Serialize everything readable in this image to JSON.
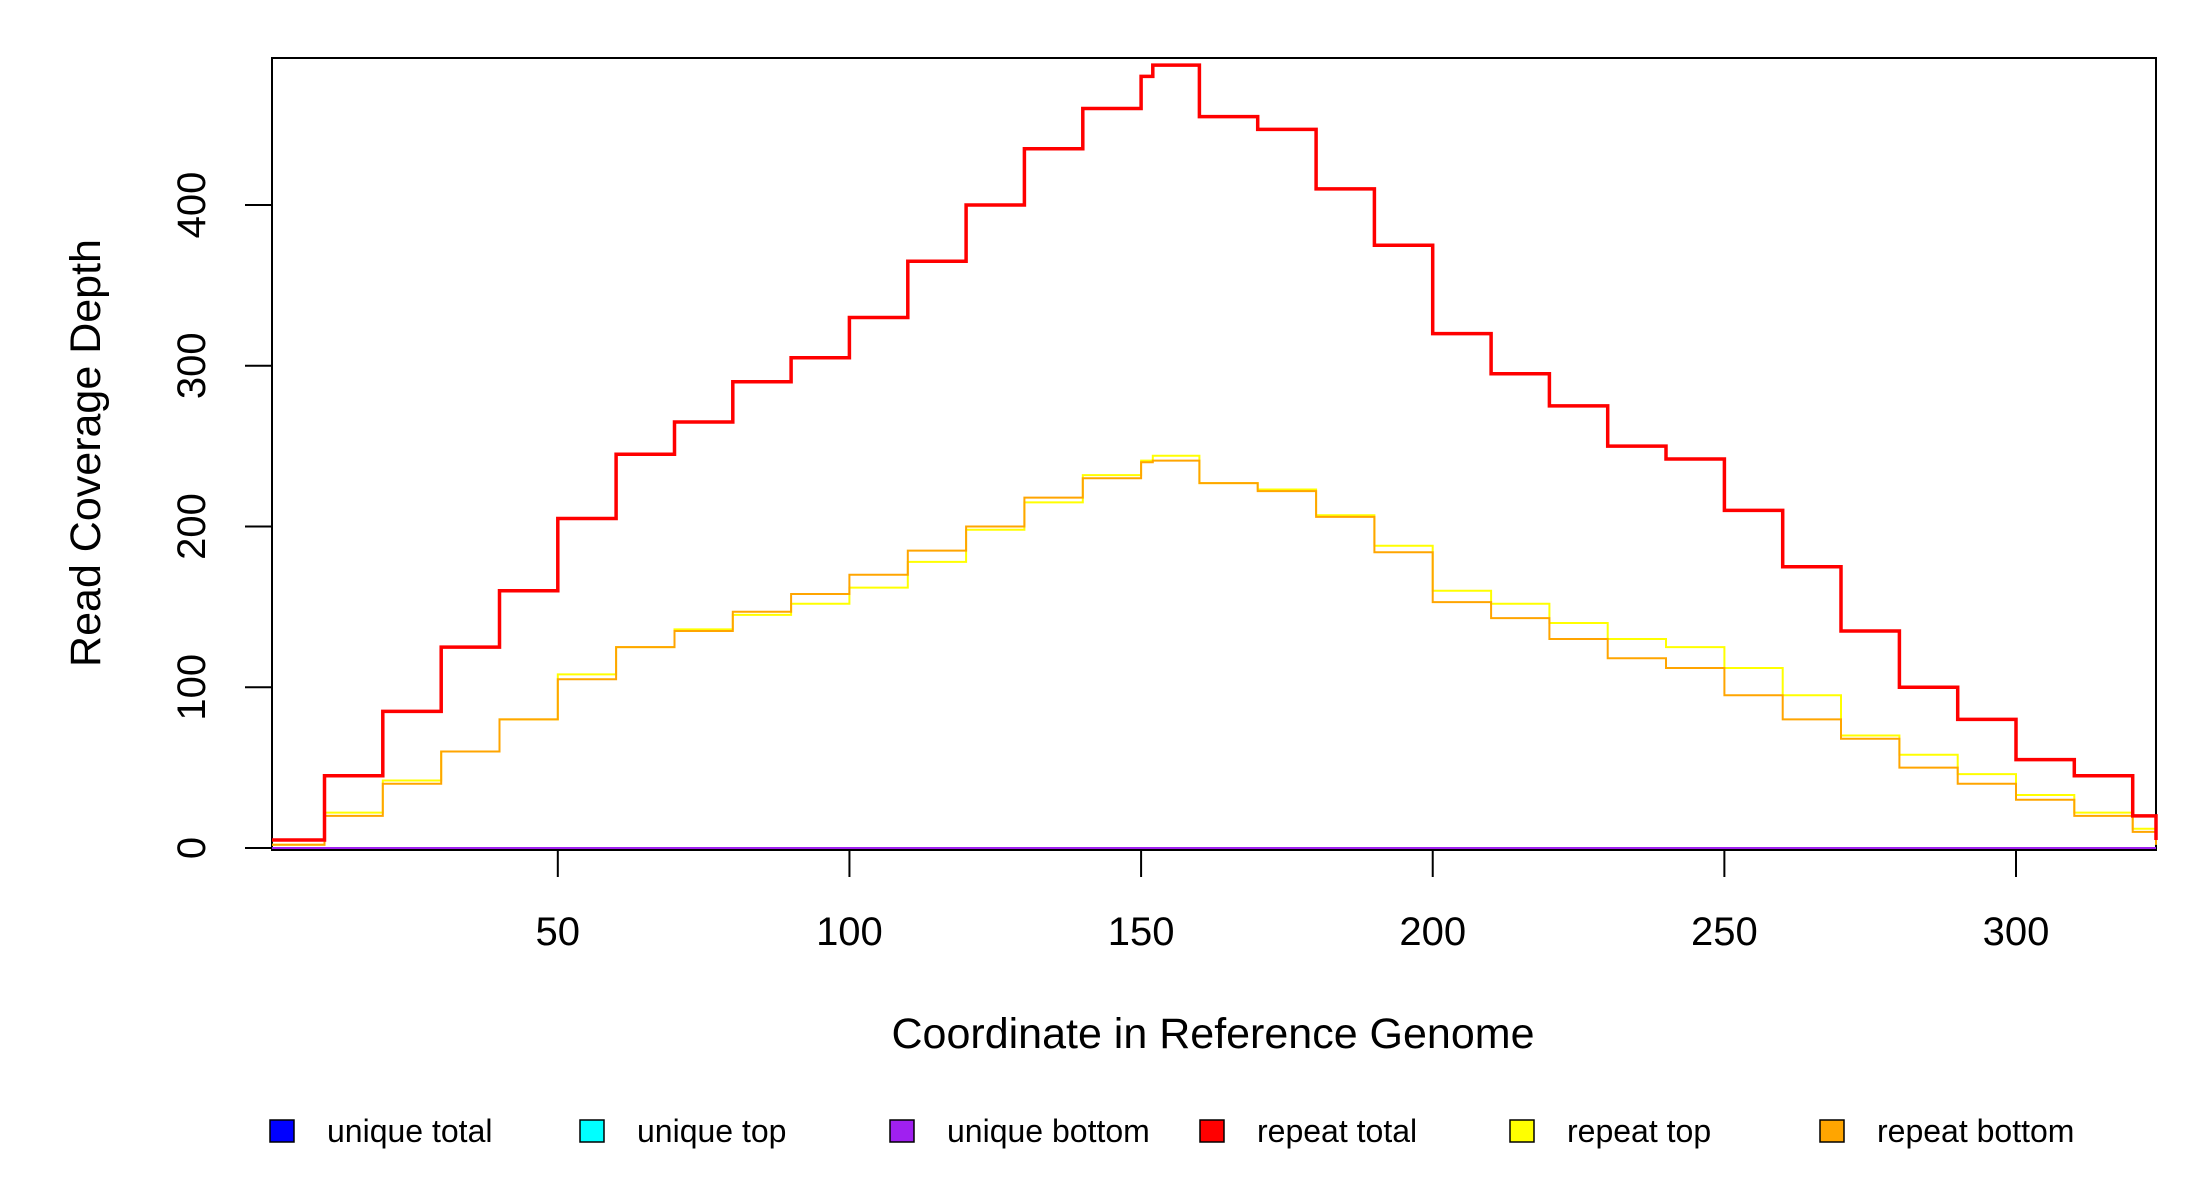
{
  "chart_data": {
    "type": "line",
    "title": "",
    "xlabel": "Coordinate in Reference Genome",
    "ylabel": "Read Coverage Depth",
    "xlim": [
      1,
      324
    ],
    "ylim": [
      0,
      490
    ],
    "x_ticks": [
      50,
      100,
      150,
      200,
      250,
      300
    ],
    "y_ticks": [
      0,
      100,
      200,
      300,
      400
    ],
    "grid": false,
    "legend_position": "bottom",
    "x": [
      1,
      10,
      20,
      30,
      40,
      50,
      60,
      70,
      80,
      90,
      100,
      110,
      120,
      130,
      140,
      150,
      152,
      160,
      170,
      180,
      190,
      200,
      210,
      220,
      230,
      240,
      250,
      260,
      270,
      280,
      290,
      300,
      310,
      320,
      324
    ],
    "series": [
      {
        "name": "unique total",
        "color": "#0000FF",
        "values": [
          0,
          0,
          0,
          0,
          0,
          0,
          0,
          0,
          0,
          0,
          0,
          0,
          0,
          0,
          0,
          0,
          0,
          0,
          0,
          0,
          0,
          0,
          0,
          0,
          0,
          0,
          0,
          0,
          0,
          0,
          0,
          0,
          0,
          0,
          0
        ]
      },
      {
        "name": "unique top",
        "color": "#00FFFF",
        "values": [
          0,
          0,
          0,
          0,
          0,
          0,
          0,
          0,
          0,
          0,
          0,
          0,
          0,
          0,
          0,
          0,
          0,
          0,
          0,
          0,
          0,
          0,
          0,
          0,
          0,
          0,
          0,
          0,
          0,
          0,
          0,
          0,
          0,
          0,
          0
        ]
      },
      {
        "name": "unique bottom",
        "color": "#A020F0",
        "values": [
          0,
          0,
          0,
          0,
          0,
          0,
          0,
          0,
          0,
          0,
          0,
          0,
          0,
          0,
          0,
          0,
          0,
          0,
          0,
          0,
          0,
          0,
          0,
          0,
          0,
          0,
          0,
          0,
          0,
          0,
          0,
          0,
          0,
          0,
          0
        ]
      },
      {
        "name": "repeat total",
        "color": "#FF0000",
        "values": [
          5,
          45,
          85,
          125,
          160,
          205,
          245,
          265,
          290,
          305,
          330,
          365,
          400,
          435,
          460,
          480,
          487,
          455,
          447,
          410,
          375,
          320,
          295,
          275,
          250,
          242,
          210,
          175,
          135,
          100,
          80,
          55,
          45,
          20,
          5
        ]
      },
      {
        "name": "repeat top",
        "color": "#FFFF00",
        "values": [
          2,
          22,
          42,
          60,
          80,
          108,
          125,
          136,
          145,
          152,
          162,
          178,
          198,
          215,
          232,
          241,
          244,
          227,
          223,
          207,
          188,
          160,
          152,
          140,
          130,
          125,
          112,
          95,
          70,
          58,
          46,
          33,
          22,
          12,
          2
        ]
      },
      {
        "name": "repeat bottom",
        "color": "#FFA500",
        "values": [
          2,
          20,
          40,
          60,
          80,
          105,
          125,
          135,
          147,
          158,
          170,
          185,
          200,
          218,
          230,
          240,
          241,
          227,
          222,
          206,
          184,
          153,
          143,
          130,
          118,
          112,
          95,
          80,
          68,
          50,
          40,
          30,
          20,
          10,
          2
        ]
      }
    ]
  }
}
